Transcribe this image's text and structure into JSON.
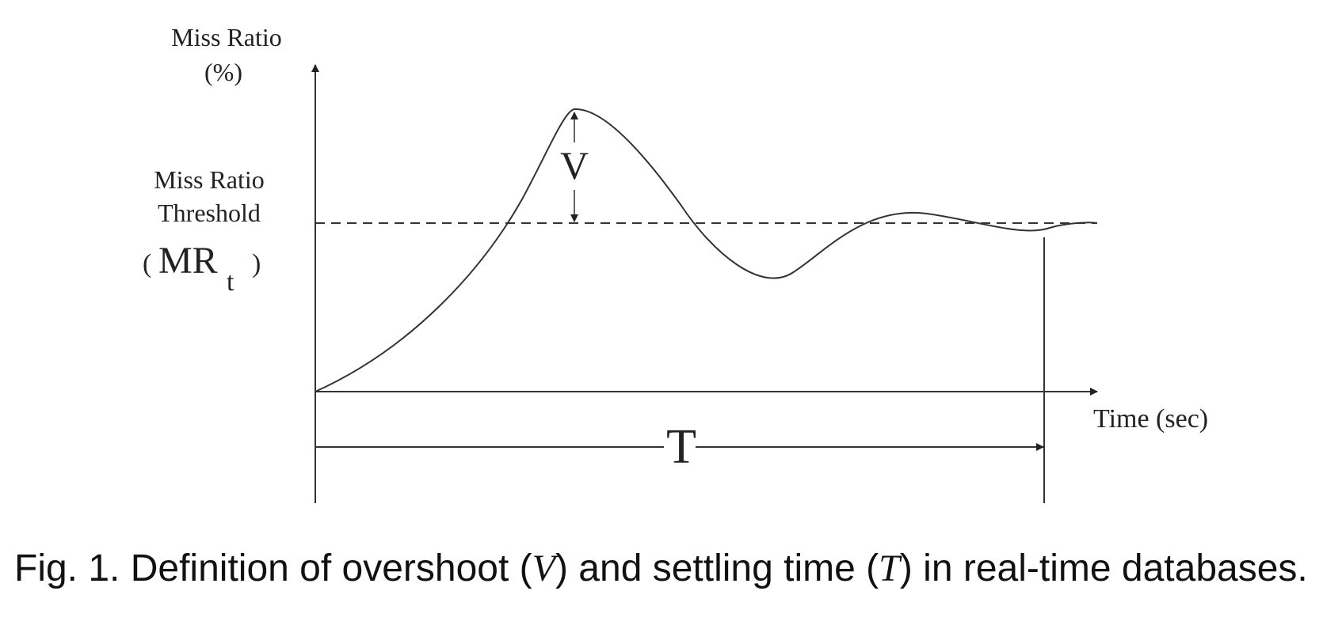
{
  "figure": {
    "y_axis_label_line1": "Miss Ratio",
    "y_axis_label_line2": "(%)",
    "threshold_label_line1": "Miss Ratio",
    "threshold_label_line2": "Threshold",
    "threshold_symbol_open": "(",
    "threshold_symbol_main": "MR",
    "threshold_symbol_sub": "t",
    "threshold_symbol_close": ")",
    "overshoot_label": "V",
    "settling_time_label": "T",
    "x_axis_label": "Time (sec)"
  },
  "caption": {
    "prefix": "Fig. 1. Definition of overshoot (",
    "var_v": "V",
    "middle": ") and settling time (",
    "var_t": "T",
    "suffix": ") in real-time databases."
  }
}
